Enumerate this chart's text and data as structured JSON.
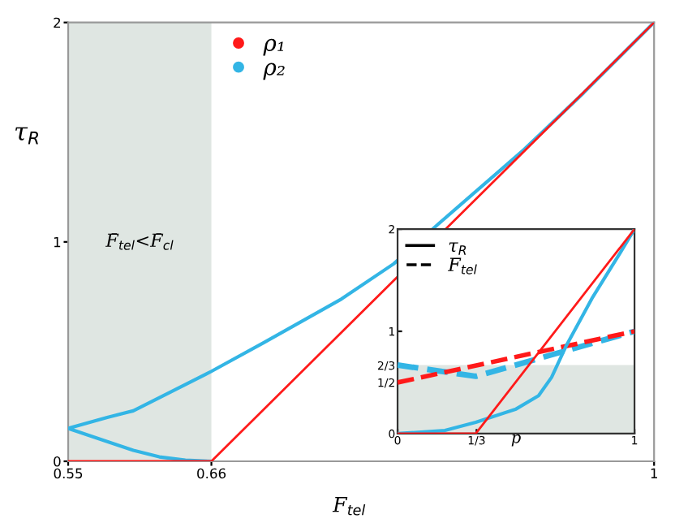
{
  "chart_data": [
    {
      "type": "line",
      "xlabel": "F$_{tel}$",
      "ylabel": "τ$_{R}$",
      "xlim": [
        0.55,
        1
      ],
      "ylim": [
        0,
        2
      ],
      "xticks": [
        0.55,
        0.66,
        1
      ],
      "yticks": [
        0,
        1,
        2
      ],
      "legend": "top left",
      "marker": "none",
      "grid": false,
      "bands": [
        {
          "axis": "x",
          "from": 0.55,
          "to": 0.66,
          "label": "F̄$_{tel}$<F̄$_{cl}$",
          "color": "#dfe6e2"
        }
      ],
      "series": [
        {
          "name": "ρ₁",
          "color": "#ff1a1a",
          "x": [
            0.55,
            0.66,
            1
          ],
          "values": [
            0,
            0,
            2
          ]
        },
        {
          "name": "ρ₂",
          "color": "#33b5e5",
          "x": [
            0.66,
            0.64,
            0.62,
            0.6,
            0.58,
            0.55,
            0.58,
            0.6,
            0.63,
            0.66,
            0.7,
            0.76,
            0.8,
            0.834,
            0.9,
            0.946,
            1
          ],
          "values": [
            0,
            0.005,
            0.02,
            0.05,
            0.09,
            0.15,
            0.2,
            0.23,
            0.32,
            0.41,
            0.54,
            0.74,
            0.9,
            1.08,
            1.42,
            1.68,
            2
          ]
        }
      ]
    },
    {
      "type": "line",
      "xlabel": "p",
      "xlim": [
        0,
        1
      ],
      "ylim": [
        0,
        2
      ],
      "xticks": [
        0,
        {
          "value": 0.3333,
          "label": "1/3"
        },
        1
      ],
      "yticks": [
        0,
        {
          "value": 0.5,
          "label": "1/2"
        },
        {
          "value": 0.6667,
          "label": "2/3"
        },
        1,
        2
      ],
      "legend": "top left",
      "marker": "none",
      "grid": false,
      "annotations": [
        "τ$_{R}$",
        "F$_{tel}$"
      ],
      "bands": [
        {
          "axis": "y",
          "from": 0,
          "to": 0.67,
          "color": "#dfe6e2"
        }
      ],
      "series": [
        {
          "color": "#ff1a1a",
          "line_style": "solid",
          "x": [
            0,
            0.33,
            1
          ],
          "values": [
            0,
            0,
            2
          ]
        },
        {
          "color": "#33b5e5",
          "line_style": "solid",
          "x": [
            0,
            0.2,
            0.33,
            0.5,
            0.595,
            0.65,
            0.71,
            0.82,
            0.94,
            1
          ],
          "values": [
            0,
            0.03,
            0.11,
            0.24,
            0.37,
            0.55,
            0.85,
            1.32,
            1.77,
            2
          ]
        },
        {
          "color": "#ff1a1a",
          "line_style": "dashed",
          "x": [
            0,
            1
          ],
          "values": [
            0.5,
            1
          ]
        },
        {
          "color": "#33b5e5",
          "line_style": "dashed",
          "x": [
            0,
            0.33,
            1
          ],
          "values": [
            0.67,
            0.56,
            1
          ]
        }
      ]
    }
  ]
}
